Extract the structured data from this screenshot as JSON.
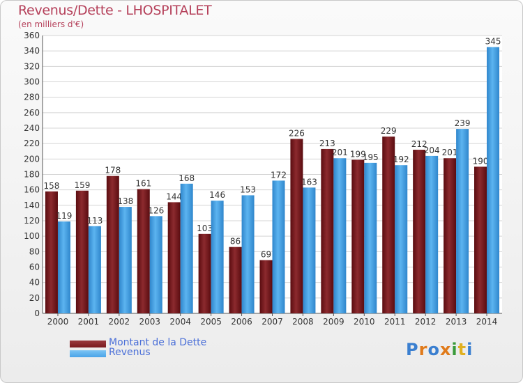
{
  "chart_data": {
    "type": "bar",
    "title": "Revenus/Dette - LHOSPITALET",
    "subtitle": "(en milliers d'€)",
    "categories": [
      "2000",
      "2001",
      "2002",
      "2003",
      "2004",
      "2005",
      "2006",
      "2007",
      "2008",
      "2009",
      "2010",
      "2011",
      "2012",
      "2013",
      "2014"
    ],
    "series": [
      {
        "name": "Montant de la Dette",
        "color": "#7a1a1e",
        "values": [
          158,
          159,
          178,
          161,
          144,
          103,
          86,
          69,
          226,
          213,
          199,
          229,
          212,
          201,
          190
        ]
      },
      {
        "name": "Revenus",
        "color": "#4aa3e8",
        "values": [
          119,
          113,
          138,
          126,
          168,
          146,
          153,
          172,
          163,
          201,
          195,
          192,
          204,
          239,
          345
        ]
      }
    ],
    "ylim": [
      0,
      360
    ],
    "yticks": [
      0,
      20,
      40,
      60,
      80,
      100,
      120,
      140,
      160,
      180,
      200,
      220,
      240,
      260,
      280,
      300,
      320,
      340,
      360
    ],
    "grid": true,
    "legend_position": "bottom-left"
  },
  "logo": {
    "text": "Proxiti",
    "colors": [
      "#3a7fd0",
      "#e07a1a",
      "#3a7fd0",
      "#e07a1a",
      "#3a9a3a",
      "#e0b020",
      "#3a7fd0"
    ]
  }
}
